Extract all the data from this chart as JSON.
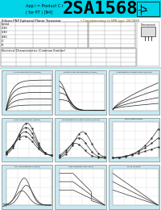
{
  "bg_color": "#b8e8f0",
  "header_bg": "#00d4e8",
  "title_text": "2SA1568",
  "subtitle_left1": "App l = Product C r",
  "subtitle_left2": "( for P7 ) [N4]",
  "chart_bg": "#c8e8f0",
  "chart_inner_bg": "#d0ecf4",
  "page_number": "24",
  "chart_titles": [
    "Ic-VCE Characteristics (Typical)",
    "Emitter-base Characteristics (Typical)",
    "Ic-Temperature Characteristics (Typical)",
    "Ic-hFE Characteristics (Typical)",
    "hFE-Temperature Characteristics (Typical)",
    "Rjce Characteristics",
    "fr-Ic Characteristics (Typical)",
    "Safe Operating Area Curves",
    "PC-Ta derating"
  ]
}
